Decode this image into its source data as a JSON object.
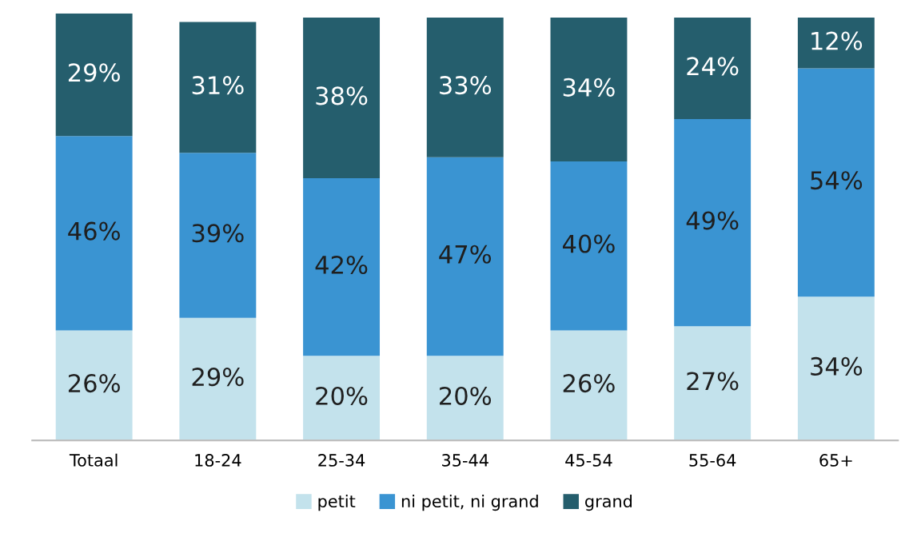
{
  "chart_data": {
    "type": "bar",
    "stacked": true,
    "legend": "bottom",
    "grid": false,
    "categories": [
      "Totaal",
      "18-24",
      "25-34",
      "35-44",
      "45-54",
      "55-64",
      "65+"
    ],
    "series": [
      {
        "name": "petit",
        "color": "#c3e2ec",
        "values": [
          26,
          29,
          20,
          20,
          26,
          27,
          34
        ],
        "value_labels": [
          "26%",
          "29%",
          "20%",
          "20%",
          "26%",
          "27%",
          "34%"
        ]
      },
      {
        "name": "ni petit, ni grand",
        "color": "#3a94d2",
        "values": [
          46,
          39,
          42,
          47,
          40,
          49,
          54
        ],
        "value_labels": [
          "46%",
          "39%",
          "42%",
          "47%",
          "40%",
          "49%",
          "54%"
        ]
      },
      {
        "name": "grand",
        "color": "#255e6d",
        "values": [
          29,
          31,
          38,
          33,
          34,
          24,
          12
        ],
        "value_labels": [
          "29%",
          "31%",
          "38%",
          "33%",
          "34%",
          "24%",
          "12%"
        ]
      }
    ]
  }
}
